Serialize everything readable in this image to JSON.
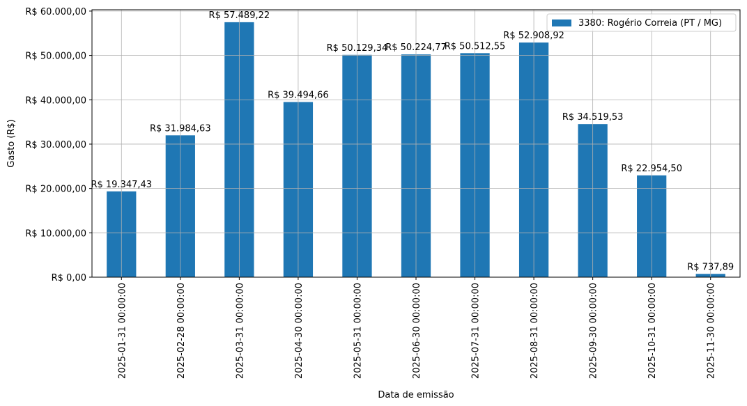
{
  "chart_data": {
    "type": "bar",
    "title": "",
    "xlabel": "Data de emissão",
    "ylabel": "Gasto (R$)",
    "ylim": [
      0,
      60300
    ],
    "grid": true,
    "legend_position": "top-right",
    "bar_color": "#1f77b4",
    "yticks": [
      0,
      10000,
      20000,
      30000,
      40000,
      50000,
      60000
    ],
    "ytick_labels": [
      "R$ 0,00",
      "R$ 10.000,00",
      "R$ 20.000,00",
      "R$ 30.000,00",
      "R$ 40.000,00",
      "R$ 50.000,00",
      "R$ 60.000,00"
    ],
    "categories": [
      "2025-01-31 00:00:00",
      "2025-02-28 00:00:00",
      "2025-03-31 00:00:00",
      "2025-04-30 00:00:00",
      "2025-05-31 00:00:00",
      "2025-06-30 00:00:00",
      "2025-07-31 00:00:00",
      "2025-08-31 00:00:00",
      "2025-09-30 00:00:00",
      "2025-10-31 00:00:00",
      "2025-11-30 00:00:00"
    ],
    "series": [
      {
        "name": "3380: Rogério Correia (PT / MG)",
        "values": [
          19347.43,
          31984.63,
          57489.22,
          39494.66,
          50129.34,
          50224.77,
          50512.55,
          52908.92,
          34519.53,
          22954.5,
          737.89
        ],
        "labels": [
          "R$ 19.347,43",
          "R$ 31.984,63",
          "R$ 57.489,22",
          "R$ 39.494,66",
          "R$ 50.129,34",
          "R$ 50.224,77",
          "R$ 50.512,55",
          "R$ 52.908,92",
          "R$ 34.519,53",
          "R$ 22.954,50",
          "R$ 737,89"
        ]
      }
    ]
  }
}
